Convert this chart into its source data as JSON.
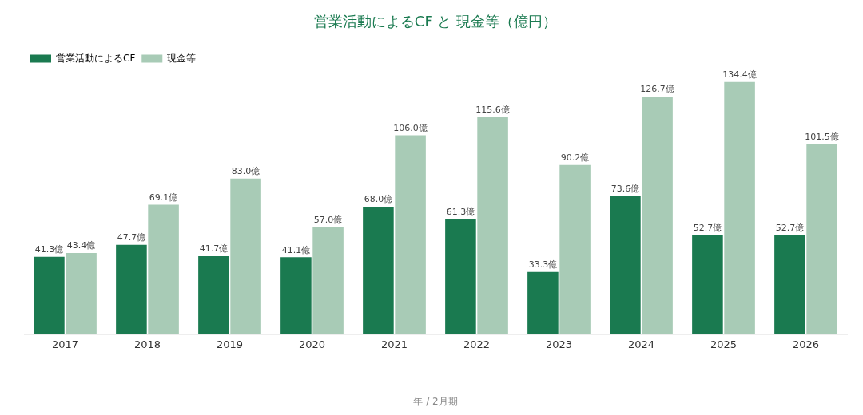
{
  "chart_data": {
    "type": "bar",
    "title": "営業活動によるCF と 現金等（億円）",
    "xlabel": "年 / 2月期",
    "legend": "top left",
    "grid": false,
    "categories": [
      "2017",
      "2018",
      "2019",
      "2020",
      "2021",
      "2022",
      "2023",
      "2024",
      "2025",
      "2026"
    ],
    "series": [
      {
        "name": "営業活動によるCF",
        "color": "#1a7a50",
        "values": [
          41.3,
          47.7,
          41.7,
          41.1,
          68.0,
          61.3,
          33.3,
          73.6,
          52.7,
          52.7
        ],
        "value_labels": [
          "41.3億",
          "47.7億",
          "41.7億",
          "41.1億",
          "68.0億",
          "61.3億",
          "33.3億",
          "73.6億",
          "52.7億",
          "52.7億"
        ]
      },
      {
        "name": "現金等",
        "color": "#a8cbb6",
        "values": [
          43.4,
          69.1,
          83.0,
          57.0,
          106.0,
          115.6,
          90.2,
          126.7,
          134.4,
          101.5
        ],
        "value_labels": [
          "43.4億",
          "69.1億",
          "83.0億",
          "57.0億",
          "106.0億",
          "115.6億",
          "90.2億",
          "126.7億",
          "134.4億",
          "101.5億"
        ]
      }
    ]
  }
}
